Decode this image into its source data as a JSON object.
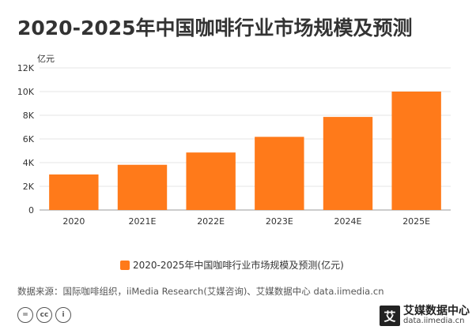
{
  "title": "2020-2025年中国咖啡行业市场规模及预测",
  "colors": {
    "bar": "#FF7A1A",
    "grid": "#E6E6E6",
    "axis": "#999999"
  },
  "chart_data": {
    "type": "bar",
    "title": "2020-2025年中国咖啡行业市场规模及预测",
    "unit_label": "亿元",
    "categories": [
      "2020",
      "2021E",
      "2022E",
      "2023E",
      "2024E",
      "2025E"
    ],
    "series": [
      {
        "name": "2020-2025年中国咖啡行业市场规模及预测(亿元)",
        "values": [
          3000,
          3817,
          4856,
          6178,
          7860,
          10000
        ]
      }
    ],
    "ylim": [
      0,
      12000
    ],
    "yticks": [
      0,
      2000,
      4000,
      6000,
      8000,
      10000,
      12000
    ],
    "ytick_labels": [
      "0",
      "2K",
      "4K",
      "6K",
      "8K",
      "10K",
      "12K"
    ],
    "grid": true,
    "legend_position": "bottom"
  },
  "source_text": "数据来源：国际咖啡组织，iiMedia Research(艾媒咨询)、艾媒数据中心 data.iimedia.cn",
  "footer_icons": [
    "=",
    "cc",
    "i"
  ],
  "brand": {
    "logo_char": "艾",
    "name": "艾媒数据中心",
    "url": "data.iimedia.cn"
  }
}
